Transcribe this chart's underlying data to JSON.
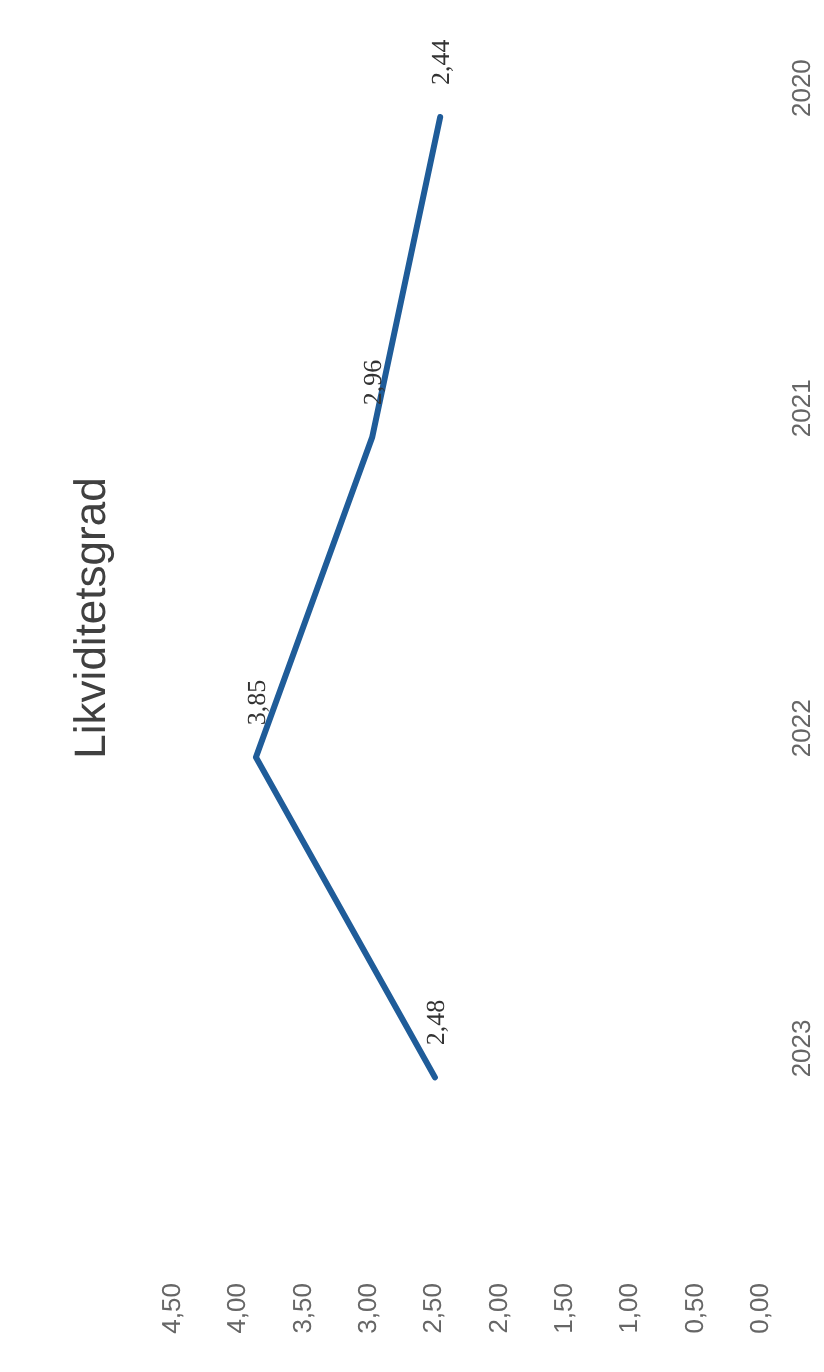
{
  "chart_data": {
    "type": "line",
    "orientation": "horizontal",
    "title": "Likviditetsgrad",
    "categories": [
      "2020",
      "2021",
      "2022",
      "2023"
    ],
    "values": [
      2.44,
      2.96,
      3.85,
      2.48
    ],
    "color": "#1f5c99",
    "value_labels": [
      "2,44",
      "2,96",
      "3,85",
      "2,48"
    ],
    "xlim": [
      4.5,
      0
    ],
    "xticks": [
      {
        "value": 4.5,
        "label": "4,50"
      },
      {
        "value": 4,
        "label": "4,00"
      },
      {
        "value": 3.5,
        "label": "3,50"
      },
      {
        "value": 3,
        "label": "3,00"
      },
      {
        "value": 2.5,
        "label": "2,50"
      },
      {
        "value": 2,
        "label": "2,00"
      },
      {
        "value": 1.5,
        "label": "1,50"
      },
      {
        "value": 1,
        "label": "1,00"
      },
      {
        "value": 0.5,
        "label": "0,50"
      },
      {
        "value": 0,
        "label": "0,00"
      }
    ],
    "grid": false
  }
}
